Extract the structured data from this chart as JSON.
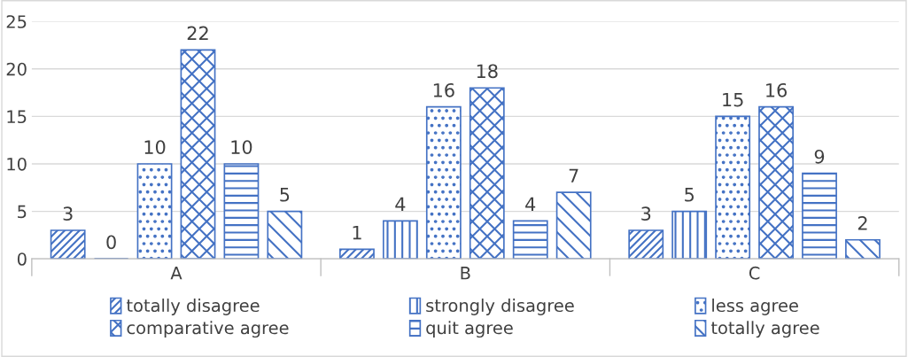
{
  "chart_data": {
    "type": "bar",
    "categories": [
      "A",
      "B",
      "C"
    ],
    "series": [
      {
        "name": "totally disagree",
        "color": "#4472c4",
        "values": [
          3,
          1,
          3
        ]
      },
      {
        "name": "strongly disagree",
        "color": "#4472c4",
        "values": [
          0,
          4,
          5
        ]
      },
      {
        "name": "less agree",
        "color": "#4472c4",
        "values": [
          10,
          16,
          15
        ]
      },
      {
        "name": "comparative agree",
        "color": "#4472c4",
        "values": [
          22,
          18,
          16
        ]
      },
      {
        "name": "quit agree",
        "color": "#4472c4",
        "values": [
          10,
          4,
          9
        ]
      },
      {
        "name": "totally agree",
        "color": "#4472c4",
        "values": [
          5,
          7,
          2
        ]
      }
    ],
    "ylim": [
      0,
      25
    ],
    "yticks": [
      0,
      5,
      10,
      15,
      20,
      25
    ],
    "grid": "y",
    "legend": "bottom",
    "data_labels": true
  }
}
